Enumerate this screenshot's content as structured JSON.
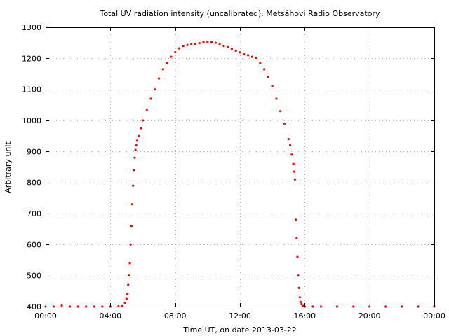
{
  "chart_data": {
    "type": "scatter",
    "title": "Total UV radiation intensity (uncalibrated). Metsähovi Radio Observatory",
    "xlabel": "Time UT, on date 2013-03-22",
    "ylabel": "Arbitrary unit",
    "xlim": [
      0,
      24
    ],
    "ylim": [
      400,
      1300
    ],
    "x_ticks": [
      {
        "value": 0,
        "label": "00:00"
      },
      {
        "value": 4,
        "label": "04:00"
      },
      {
        "value": 8,
        "label": "08:00"
      },
      {
        "value": 12,
        "label": "12:00"
      },
      {
        "value": 16,
        "label": "16:00"
      },
      {
        "value": 20,
        "label": "20:00"
      },
      {
        "value": 24,
        "label": "00:00"
      }
    ],
    "y_ticks": [
      {
        "value": 400,
        "label": "400"
      },
      {
        "value": 500,
        "label": "500"
      },
      {
        "value": 600,
        "label": "600"
      },
      {
        "value": 700,
        "label": "700"
      },
      {
        "value": 800,
        "label": "800"
      },
      {
        "value": 900,
        "label": "900"
      },
      {
        "value": 1000,
        "label": "1000"
      },
      {
        "value": 1100,
        "label": "1100"
      },
      {
        "value": 1200,
        "label": "1200"
      },
      {
        "value": 1300,
        "label": "1300"
      }
    ],
    "grid": true,
    "marker_color": "#ff0000",
    "series": [
      {
        "x": [
          0.0,
          0.5,
          1.0,
          1.5,
          2.0,
          2.5,
          3.0,
          3.5,
          4.0,
          4.5,
          4.75,
          4.9,
          5.0,
          5.05,
          5.1,
          5.15,
          5.2,
          5.25,
          5.3,
          5.35,
          5.4,
          5.45,
          5.5,
          5.55,
          5.6,
          5.65,
          5.75,
          5.9,
          6.0,
          6.25,
          6.5,
          6.75,
          7.0,
          7.25,
          7.5,
          7.75,
          8.0,
          8.25,
          8.5,
          8.75,
          9.0,
          9.25,
          9.5,
          9.75,
          10.0,
          10.25,
          10.5,
          10.75,
          11.0,
          11.25,
          11.5,
          11.75,
          12.0,
          12.25,
          12.5,
          12.75,
          13.0,
          13.25,
          13.5,
          13.75,
          14.0,
          14.25,
          14.5,
          14.75,
          15.0,
          15.1,
          15.2,
          15.3,
          15.35,
          15.4,
          15.45,
          15.5,
          15.55,
          15.6,
          15.65,
          15.7,
          15.75,
          15.8,
          15.9,
          16.0,
          16.5,
          17.0,
          18.0,
          19.0,
          20.0,
          21.0,
          22.0,
          23.0,
          24.0
        ],
        "y": [
          400,
          400,
          403,
          400,
          400,
          400,
          400,
          400,
          400,
          401,
          402,
          412,
          425,
          440,
          470,
          500,
          540,
          600,
          660,
          730,
          790,
          840,
          880,
          905,
          920,
          935,
          950,
          975,
          1000,
          1035,
          1070,
          1100,
          1135,
          1165,
          1185,
          1205,
          1220,
          1232,
          1240,
          1243,
          1245,
          1246,
          1249,
          1252,
          1253,
          1253,
          1250,
          1245,
          1240,
          1236,
          1230,
          1224,
          1219,
          1213,
          1210,
          1205,
          1200,
          1185,
          1165,
          1140,
          1110,
          1070,
          1030,
          990,
          940,
          920,
          890,
          860,
          835,
          810,
          680,
          620,
          560,
          500,
          460,
          430,
          415,
          408,
          402,
          400,
          400,
          400,
          400,
          400,
          400,
          400,
          400,
          400,
          400
        ]
      }
    ]
  }
}
